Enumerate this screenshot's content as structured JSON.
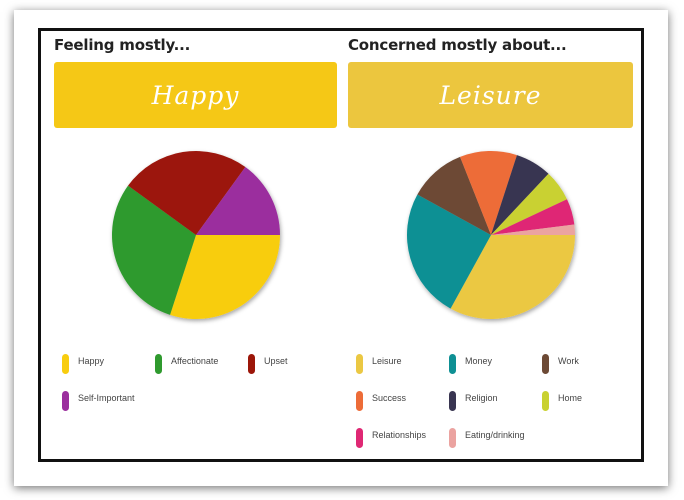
{
  "left": {
    "heading": "Feeling mostly...",
    "banner": "Happy",
    "banner_color": "#f5c816"
  },
  "right": {
    "heading": "Concerned mostly about...",
    "banner": "Leisure",
    "banner_color": "#ecc63e"
  },
  "chart_data": [
    {
      "type": "pie",
      "slices": [
        {
          "label": "Happy",
          "value": 30,
          "color": "#f8cd0f"
        },
        {
          "label": "Affectionate",
          "value": 30,
          "color": "#2f9a2e"
        },
        {
          "label": "Upset",
          "value": 25,
          "color": "#9c1609"
        },
        {
          "label": "Self-Important",
          "value": 15,
          "color": "#9b2f9e"
        }
      ]
    },
    {
      "type": "pie",
      "slices": [
        {
          "label": "Leisure",
          "value": 33,
          "color": "#ebc843"
        },
        {
          "label": "Money",
          "value": 25,
          "color": "#0e9094"
        },
        {
          "label": "Work",
          "value": 11,
          "color": "#6d4a35"
        },
        {
          "label": "Success",
          "value": 11,
          "color": "#ed6c38"
        },
        {
          "label": "Religion",
          "value": 7,
          "color": "#393551"
        },
        {
          "label": "Home",
          "value": 6,
          "color": "#c9d130"
        },
        {
          "label": "Relationships",
          "value": 5,
          "color": "#df2874"
        },
        {
          "label": "Eating/drinking",
          "value": 2,
          "color": "#eba3a0"
        }
      ]
    }
  ]
}
